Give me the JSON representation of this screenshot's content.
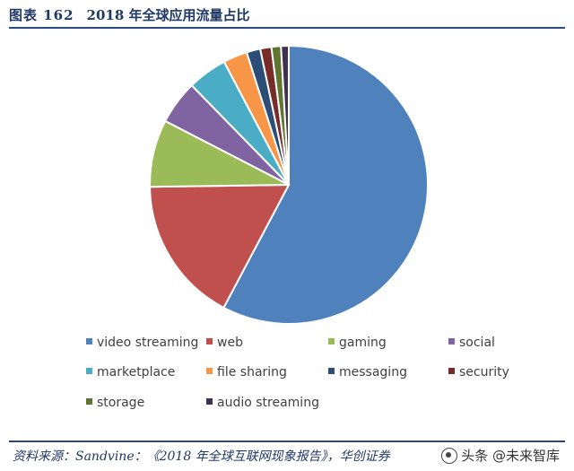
{
  "header": {
    "figure_number": "图表 162",
    "title": "2018 年全球应用流量占比"
  },
  "chart_data": {
    "type": "pie",
    "title": "",
    "legend_position": "bottom",
    "slices": [
      {
        "label": "video streaming",
        "value": 57.7,
        "color": "#4f81bd"
      },
      {
        "label": "web",
        "value": 17.0,
        "color": "#c0504d"
      },
      {
        "label": "gaming",
        "value": 7.8,
        "color": "#9bbb59"
      },
      {
        "label": "social",
        "value": 5.1,
        "color": "#8064a2"
      },
      {
        "label": "marketplace",
        "value": 4.6,
        "color": "#4bacc6"
      },
      {
        "label": "file sharing",
        "value": 2.8,
        "color": "#f79646"
      },
      {
        "label": "messaging",
        "value": 1.6,
        "color": "#2c4d75"
      },
      {
        "label": "security",
        "value": 1.3,
        "color": "#772c2a"
      },
      {
        "label": "storage",
        "value": 1.1,
        "color": "#5f7530"
      },
      {
        "label": "audio streaming",
        "value": 0.9,
        "color": "#3f3151"
      }
    ]
  },
  "footer": {
    "source": "资料来源：Sandvine：《2018 年全球互联网现象报告》，华创证券",
    "watermark": "头条 @未来智库"
  }
}
